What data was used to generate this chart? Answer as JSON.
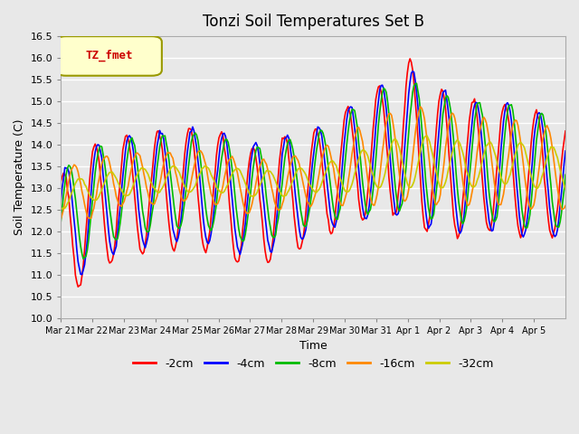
{
  "title": "Tonzi Soil Temperatures Set B",
  "xlabel": "Time",
  "ylabel": "Soil Temperature (C)",
  "legend_label": "TZ_fmet",
  "ylim": [
    10.0,
    16.5
  ],
  "yticks": [
    10.0,
    10.5,
    11.0,
    11.5,
    12.0,
    12.5,
    13.0,
    13.5,
    14.0,
    14.5,
    15.0,
    15.5,
    16.0,
    16.5
  ],
  "xtick_labels": [
    "Mar 21",
    "Mar 22",
    "Mar 23",
    "Mar 24",
    "Mar 25",
    "Mar 26",
    "Mar 27",
    "Mar 28",
    "Mar 29",
    "Mar 30",
    "Mar 31",
    "Apr 1",
    "Apr 2",
    "Apr 3",
    "Apr 4",
    "Apr 5"
  ],
  "series_colors": {
    "-2cm": "#ff0000",
    "-4cm": "#0000ff",
    "-8cm": "#00bb00",
    "-16cm": "#ff8800",
    "-32cm": "#cccc00"
  },
  "series_labels": [
    "-2cm",
    "-4cm",
    "-8cm",
    "-16cm",
    "-32cm"
  ],
  "background_color": "#e8e8e8",
  "plot_bg_color": "#e8e8e8",
  "grid_color": "#ffffff",
  "legend_box_color": "#ffffcc",
  "legend_text_color": "#cc0000",
  "legend_border_color": "#999900"
}
